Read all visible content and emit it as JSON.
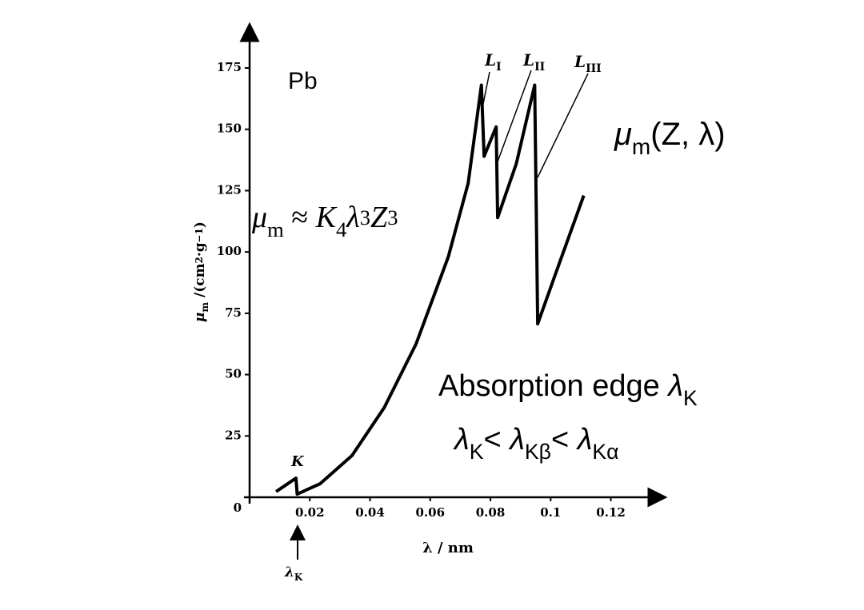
{
  "chart_data": {
    "type": "line",
    "x_label": "λ / nm",
    "y_label": [
      {
        "t": "μ",
        "s": "it"
      },
      {
        "t": "m",
        "s": "sub"
      },
      {
        "t": " /(cm"
      },
      {
        "t": "2",
        "s": "sup"
      },
      {
        "t": "·g"
      },
      {
        "t": "−1",
        "s": "sup"
      },
      {
        "t": ")"
      }
    ],
    "xlim": [
      0,
      0.135
    ],
    "ylim": [
      0,
      190
    ],
    "xticks": [
      0.02,
      0.04,
      0.06,
      0.08,
      0.1,
      0.12
    ],
    "yticks": [
      0,
      25,
      50,
      75,
      100,
      125,
      150,
      175
    ],
    "series": [
      {
        "color": "#000000",
        "x": [
          0.0088,
          0.0154,
          0.0158,
          0.0234,
          0.034,
          0.0447,
          0.0553,
          0.066,
          0.0726,
          0.077,
          0.0779,
          0.0819,
          0.0824,
          0.0886,
          0.0947,
          0.0957,
          0.1019,
          0.111
        ],
        "values": [
          2.3,
          7.8,
          1.3,
          5.5,
          17,
          36.5,
          62.5,
          98,
          128,
          168,
          139,
          151,
          114,
          136,
          168,
          70.7,
          92,
          123
        ]
      }
    ],
    "annotations": [
      [
        {
          "t": "Pb"
        }
      ],
      [
        {
          "t": "K",
          "s": "it"
        }
      ],
      [
        {
          "t": "L",
          "s": "it"
        },
        {
          "t": "I",
          "s": "sub"
        }
      ],
      [
        {
          "t": "L",
          "s": "it"
        },
        {
          "t": "II",
          "s": "sub"
        }
      ],
      [
        {
          "t": "L",
          "s": "it"
        },
        {
          "t": "III",
          "s": "sub"
        }
      ],
      [
        {
          "t": "μ",
          "s": "it"
        },
        {
          "t": "m",
          "s": "sub"
        },
        {
          "t": " ≈ "
        },
        {
          "t": "K",
          "s": "it"
        },
        {
          "t": "4",
          "s": "sub"
        },
        {
          "t": "λ",
          "s": "it"
        },
        {
          "t": "3",
          "s": "sup"
        },
        {
          "t": "Z",
          "s": "it"
        },
        {
          "t": "3",
          "s": "sup"
        }
      ],
      [
        {
          "t": "μ",
          "s": "it"
        },
        {
          "t": "m",
          "s": "sub"
        },
        {
          "t": "(Z, λ)"
        }
      ],
      [
        {
          "t": "Absorption edge "
        },
        {
          "t": "λ",
          "s": "it"
        },
        {
          "t": "K",
          "s": "sub"
        }
      ],
      [
        {
          "t": "λ",
          "s": "it"
        },
        {
          "t": "K",
          "s": "sub"
        },
        {
          "t": "< "
        },
        {
          "t": "λ",
          "s": "it"
        },
        {
          "t": "Kβ",
          "s": "sub"
        },
        {
          "t": "< "
        },
        {
          "t": "λ",
          "s": "it"
        },
        {
          "t": "Kα",
          "s": "sub"
        }
      ],
      [
        {
          "t": "λ",
          "s": "it"
        },
        {
          "t": "K",
          "s": "sub"
        }
      ]
    ]
  }
}
